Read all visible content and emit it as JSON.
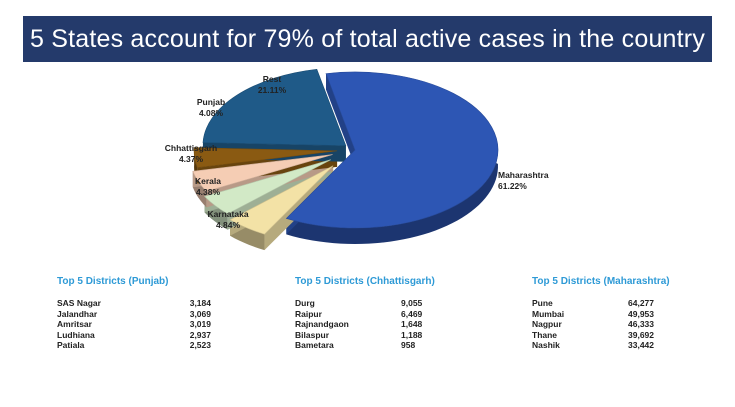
{
  "header": {
    "title": "5 States account for 79% of total active cases in the country"
  },
  "chart_data": {
    "type": "pie",
    "title": "5 States account for 79% of total active cases in the country",
    "slices": [
      {
        "label": "Maharashtra",
        "value": 61.22,
        "value_label": "61.22%",
        "color": "#2d56b4"
      },
      {
        "label": "Karnataka",
        "value": 4.84,
        "value_label": "4.84%",
        "color": "#f3e2a6"
      },
      {
        "label": "Kerala",
        "value": 4.38,
        "value_label": "4.38%",
        "color": "#d2e9c6"
      },
      {
        "label": "Chhattisgarh",
        "value": 4.37,
        "value_label": "4.37%",
        "color": "#f5cdb4"
      },
      {
        "label": "Punjab",
        "value": 4.08,
        "value_label": "4.08%",
        "color": "#8a5a12"
      },
      {
        "label": "Rest",
        "value": 21.11,
        "value_label": "21.11%",
        "color": "#1f5a88"
      }
    ]
  },
  "tables": [
    {
      "title": "Top 5 Districts (Punjab)",
      "rows": [
        {
          "name": "SAS Nagar",
          "value": "3,184"
        },
        {
          "name": "Jalandhar",
          "value": "3,069"
        },
        {
          "name": "Amritsar",
          "value": "3,019"
        },
        {
          "name": "Ludhiana",
          "value": "2,937"
        },
        {
          "name": "Patiala",
          "value": "2,523"
        }
      ]
    },
    {
      "title": "Top 5 Districts (Chhattisgarh)",
      "rows": [
        {
          "name": "Durg",
          "value": "9,055"
        },
        {
          "name": "Raipur",
          "value": "6,469"
        },
        {
          "name": "Rajnandgaon",
          "value": "1,648"
        },
        {
          "name": "Bilaspur",
          "value": "1,188"
        },
        {
          "name": "Bametara",
          "value": "958"
        }
      ]
    },
    {
      "title": "Top 5 Districts (Maharashtra)",
      "rows": [
        {
          "name": "Pune",
          "value": "64,277"
        },
        {
          "name": "Mumbai",
          "value": "49,953"
        },
        {
          "name": "Nagpur",
          "value": "46,333"
        },
        {
          "name": "Thane",
          "value": "39,692"
        },
        {
          "name": "Nashik",
          "value": "33,442"
        }
      ]
    }
  ]
}
